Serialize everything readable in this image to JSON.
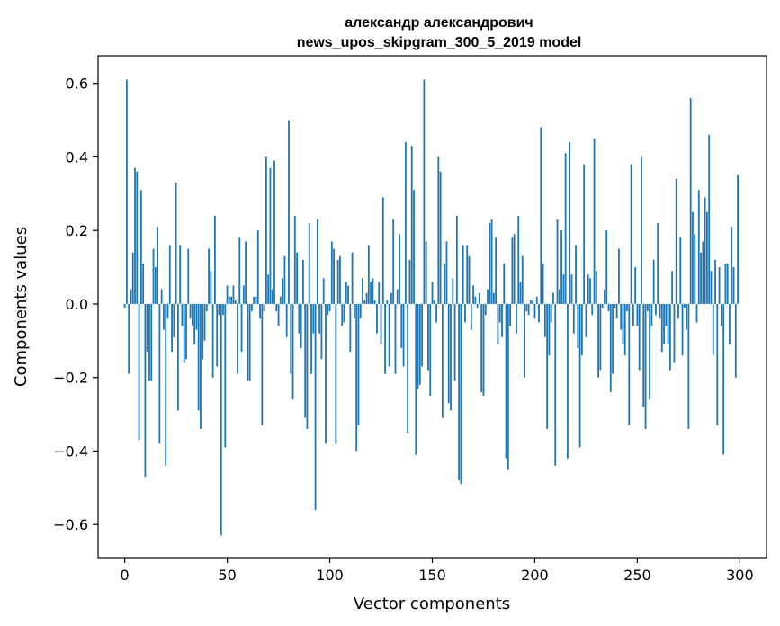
{
  "chart_data": {
    "type": "bar",
    "title_lines": [
      "александр александрович",
      "news_upos_skipgram_300_5_2019 model"
    ],
    "xlabel": "Vector components",
    "ylabel": "Components values",
    "xlim": [
      -13,
      313
    ],
    "ylim": [
      -0.69,
      0.675
    ],
    "x_ticks": [
      0,
      50,
      100,
      150,
      200,
      250,
      300
    ],
    "x_tick_labels": [
      "0",
      "50",
      "100",
      "150",
      "200",
      "250",
      "300"
    ],
    "y_ticks": [
      -0.6,
      -0.4,
      -0.2,
      0.0,
      0.2,
      0.4,
      0.6
    ],
    "y_tick_labels": [
      "−0.6",
      "−0.4",
      "−0.2",
      "0.0",
      "0.2",
      "0.4",
      "0.6"
    ],
    "grid": false,
    "bar_color": "#1f77b4",
    "values": [
      -0.01,
      0.61,
      -0.19,
      0.04,
      0.14,
      0.37,
      0.36,
      -0.37,
      0.31,
      0.11,
      -0.47,
      -0.13,
      -0.21,
      -0.21,
      0.15,
      0.1,
      0.21,
      -0.38,
      0.04,
      -0.07,
      -0.44,
      -0.04,
      0.16,
      -0.13,
      -0.09,
      0.33,
      -0.29,
      0.16,
      -0.06,
      -0.16,
      -0.15,
      0.15,
      -0.04,
      -0.06,
      -0.11,
      -0.07,
      -0.29,
      -0.34,
      -0.15,
      -0.1,
      -0.02,
      0.15,
      0.09,
      -0.2,
      0.24,
      -0.17,
      -0.03,
      -0.63,
      -0.03,
      -0.39,
      0.05,
      0.02,
      0.02,
      0.05,
      0.01,
      -0.19,
      0.18,
      -0.13,
      0.05,
      0.17,
      -0.21,
      -0.21,
      -0.02,
      0.02,
      0.02,
      0.2,
      -0.04,
      -0.33,
      -0.02,
      0.4,
      0.08,
      0.37,
      0.04,
      0.39,
      -0.02,
      -0.06,
      0.02,
      0.07,
      0.13,
      -0.09,
      0.5,
      -0.19,
      -0.26,
      0.24,
      0.14,
      -0.08,
      -0.12,
      0.12,
      -0.31,
      -0.34,
      0.22,
      -0.19,
      -0.08,
      -0.56,
      0.23,
      -0.08,
      -0.15,
      0.07,
      -0.38,
      -0.03,
      -0.02,
      0.17,
      0.15,
      -0.38,
      0.12,
      0.13,
      -0.06,
      -0.05,
      0.06,
      0.05,
      -0.13,
      0.14,
      -0.04,
      -0.4,
      -0.33,
      -0.04,
      0.07,
      0.01,
      0.03,
      0.16,
      0.06,
      0.07,
      0.01,
      -0.08,
      0.06,
      -0.11,
      0.29,
      -0.19,
      0.01,
      -0.17,
      0.03,
      0.23,
      -0.19,
      0.04,
      0.19,
      -0.12,
      -0.17,
      0.44,
      -0.35,
      0.12,
      0.43,
      0.31,
      -0.41,
      -0.23,
      -0.22,
      -0.17,
      0.61,
      0.17,
      -0.18,
      -0.25,
      0.06,
      0.01,
      -0.05,
      0.4,
      0.36,
      -0.31,
      0.11,
      0.17,
      -0.27,
      -0.29,
      0.07,
      -0.21,
      0.24,
      -0.48,
      -0.49,
      0.16,
      -0.05,
      0.16,
      0.13,
      -0.07,
      0.05,
      0.02,
      -0.01,
      0.03,
      -0.24,
      -0.25,
      -0.03,
      0.04,
      0.22,
      0.23,
      0.03,
      0.18,
      -0.11,
      -0.05,
      -0.09,
      0.11,
      -0.42,
      -0.45,
      -0.06,
      0.18,
      0.19,
      -0.08,
      0.24,
      0.06,
      0.13,
      -0.2,
      -0.02,
      -0.03,
      0.01,
      0.01,
      -0.04,
      0.02,
      -0.05,
      0.48,
      0.11,
      -0.09,
      -0.34,
      -0.14,
      -0.05,
      0.03,
      -0.44,
      0.23,
      0.04,
      0.2,
      0.08,
      0.41,
      -0.42,
      0.44,
      0.08,
      -0.08,
      0.16,
      -0.12,
      -0.39,
      -0.14,
      0.38,
      -0.09,
      0.08,
      0.07,
      -0.03,
      0.45,
      0.09,
      -0.2,
      -0.18,
      -0.01,
      0.04,
      0.2,
      -0.02,
      -0.24,
      -0.19,
      -0.01,
      -0.04,
      0.15,
      -0.07,
      -0.11,
      -0.14,
      -0.02,
      -0.33,
      0.38,
      -0.06,
      0.1,
      -0.06,
      -0.18,
      0.4,
      -0.28,
      -0.34,
      -0.02,
      -0.26,
      -0.06,
      0.12,
      -0.03,
      0.22,
      -0.04,
      -0.13,
      -0.11,
      -0.06,
      -0.11,
      -0.18,
      0.09,
      -0.16,
      0.34,
      -0.04,
      0.18,
      -0.14,
      -0.01,
      -0.07,
      -0.34,
      0.56,
      0.25,
      0.19,
      -0.05,
      0.31,
      0.14,
      0.17,
      0.29,
      0.25,
      0.46,
      0.09,
      -0.14,
      0.12,
      -0.33,
      0.1,
      -0.06,
      -0.41,
      0.11,
      0.11,
      -0.11,
      0.21,
      0.1,
      -0.2,
      0.35
    ]
  }
}
